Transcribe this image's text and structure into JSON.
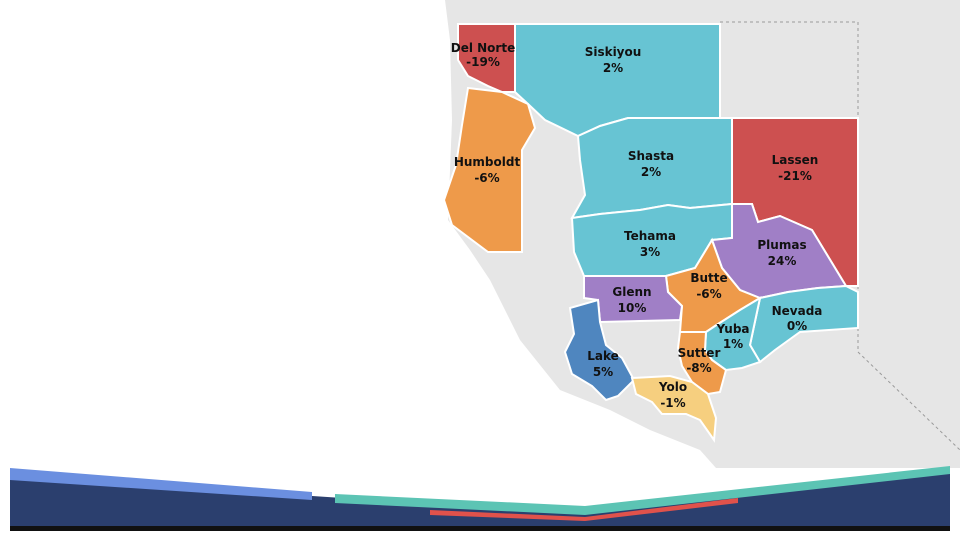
{
  "colors": {
    "background_map": "#e6e6e6",
    "teal": "#67c4d3",
    "red": "#cd5050",
    "orange": "#ee9a4a",
    "purple": "#a07fc6",
    "blue": "#4f86bf",
    "yellow": "#f6cf7f",
    "banner_navy": "#2b3f6e",
    "banner_blue": "#6b8fe0",
    "banner_teal": "#5cc4b4",
    "banner_red": "#e0524b",
    "banner_black": "#111111"
  },
  "counties": [
    {
      "id": "del-norte",
      "name": "Del Norte",
      "value": "-19%",
      "color": "red"
    },
    {
      "id": "siskiyou",
      "name": "Siskiyou",
      "value": "2%",
      "color": "teal"
    },
    {
      "id": "humboldt",
      "name": "Humboldt",
      "value": "-6%",
      "color": "orange"
    },
    {
      "id": "shasta",
      "name": "Shasta",
      "value": "2%",
      "color": "teal"
    },
    {
      "id": "lassen",
      "name": "Lassen",
      "value": "-21%",
      "color": "red"
    },
    {
      "id": "tehama",
      "name": "Tehama",
      "value": "3%",
      "color": "teal"
    },
    {
      "id": "plumas",
      "name": "Plumas",
      "value": "24%",
      "color": "purple"
    },
    {
      "id": "butte",
      "name": "Butte",
      "value": "-6%",
      "color": "orange"
    },
    {
      "id": "glenn",
      "name": "Glenn",
      "value": "10%",
      "color": "purple"
    },
    {
      "id": "nevada",
      "name": "Nevada",
      "value": "0%",
      "color": "teal"
    },
    {
      "id": "yuba",
      "name": "Yuba",
      "value": "1%",
      "color": "teal"
    },
    {
      "id": "lake",
      "name": "Lake",
      "value": "5%",
      "color": "blue"
    },
    {
      "id": "sutter",
      "name": "Sutter",
      "value": "-8%",
      "color": "orange"
    },
    {
      "id": "yolo",
      "name": "Yolo",
      "value": "-1%",
      "color": "yellow"
    }
  ]
}
